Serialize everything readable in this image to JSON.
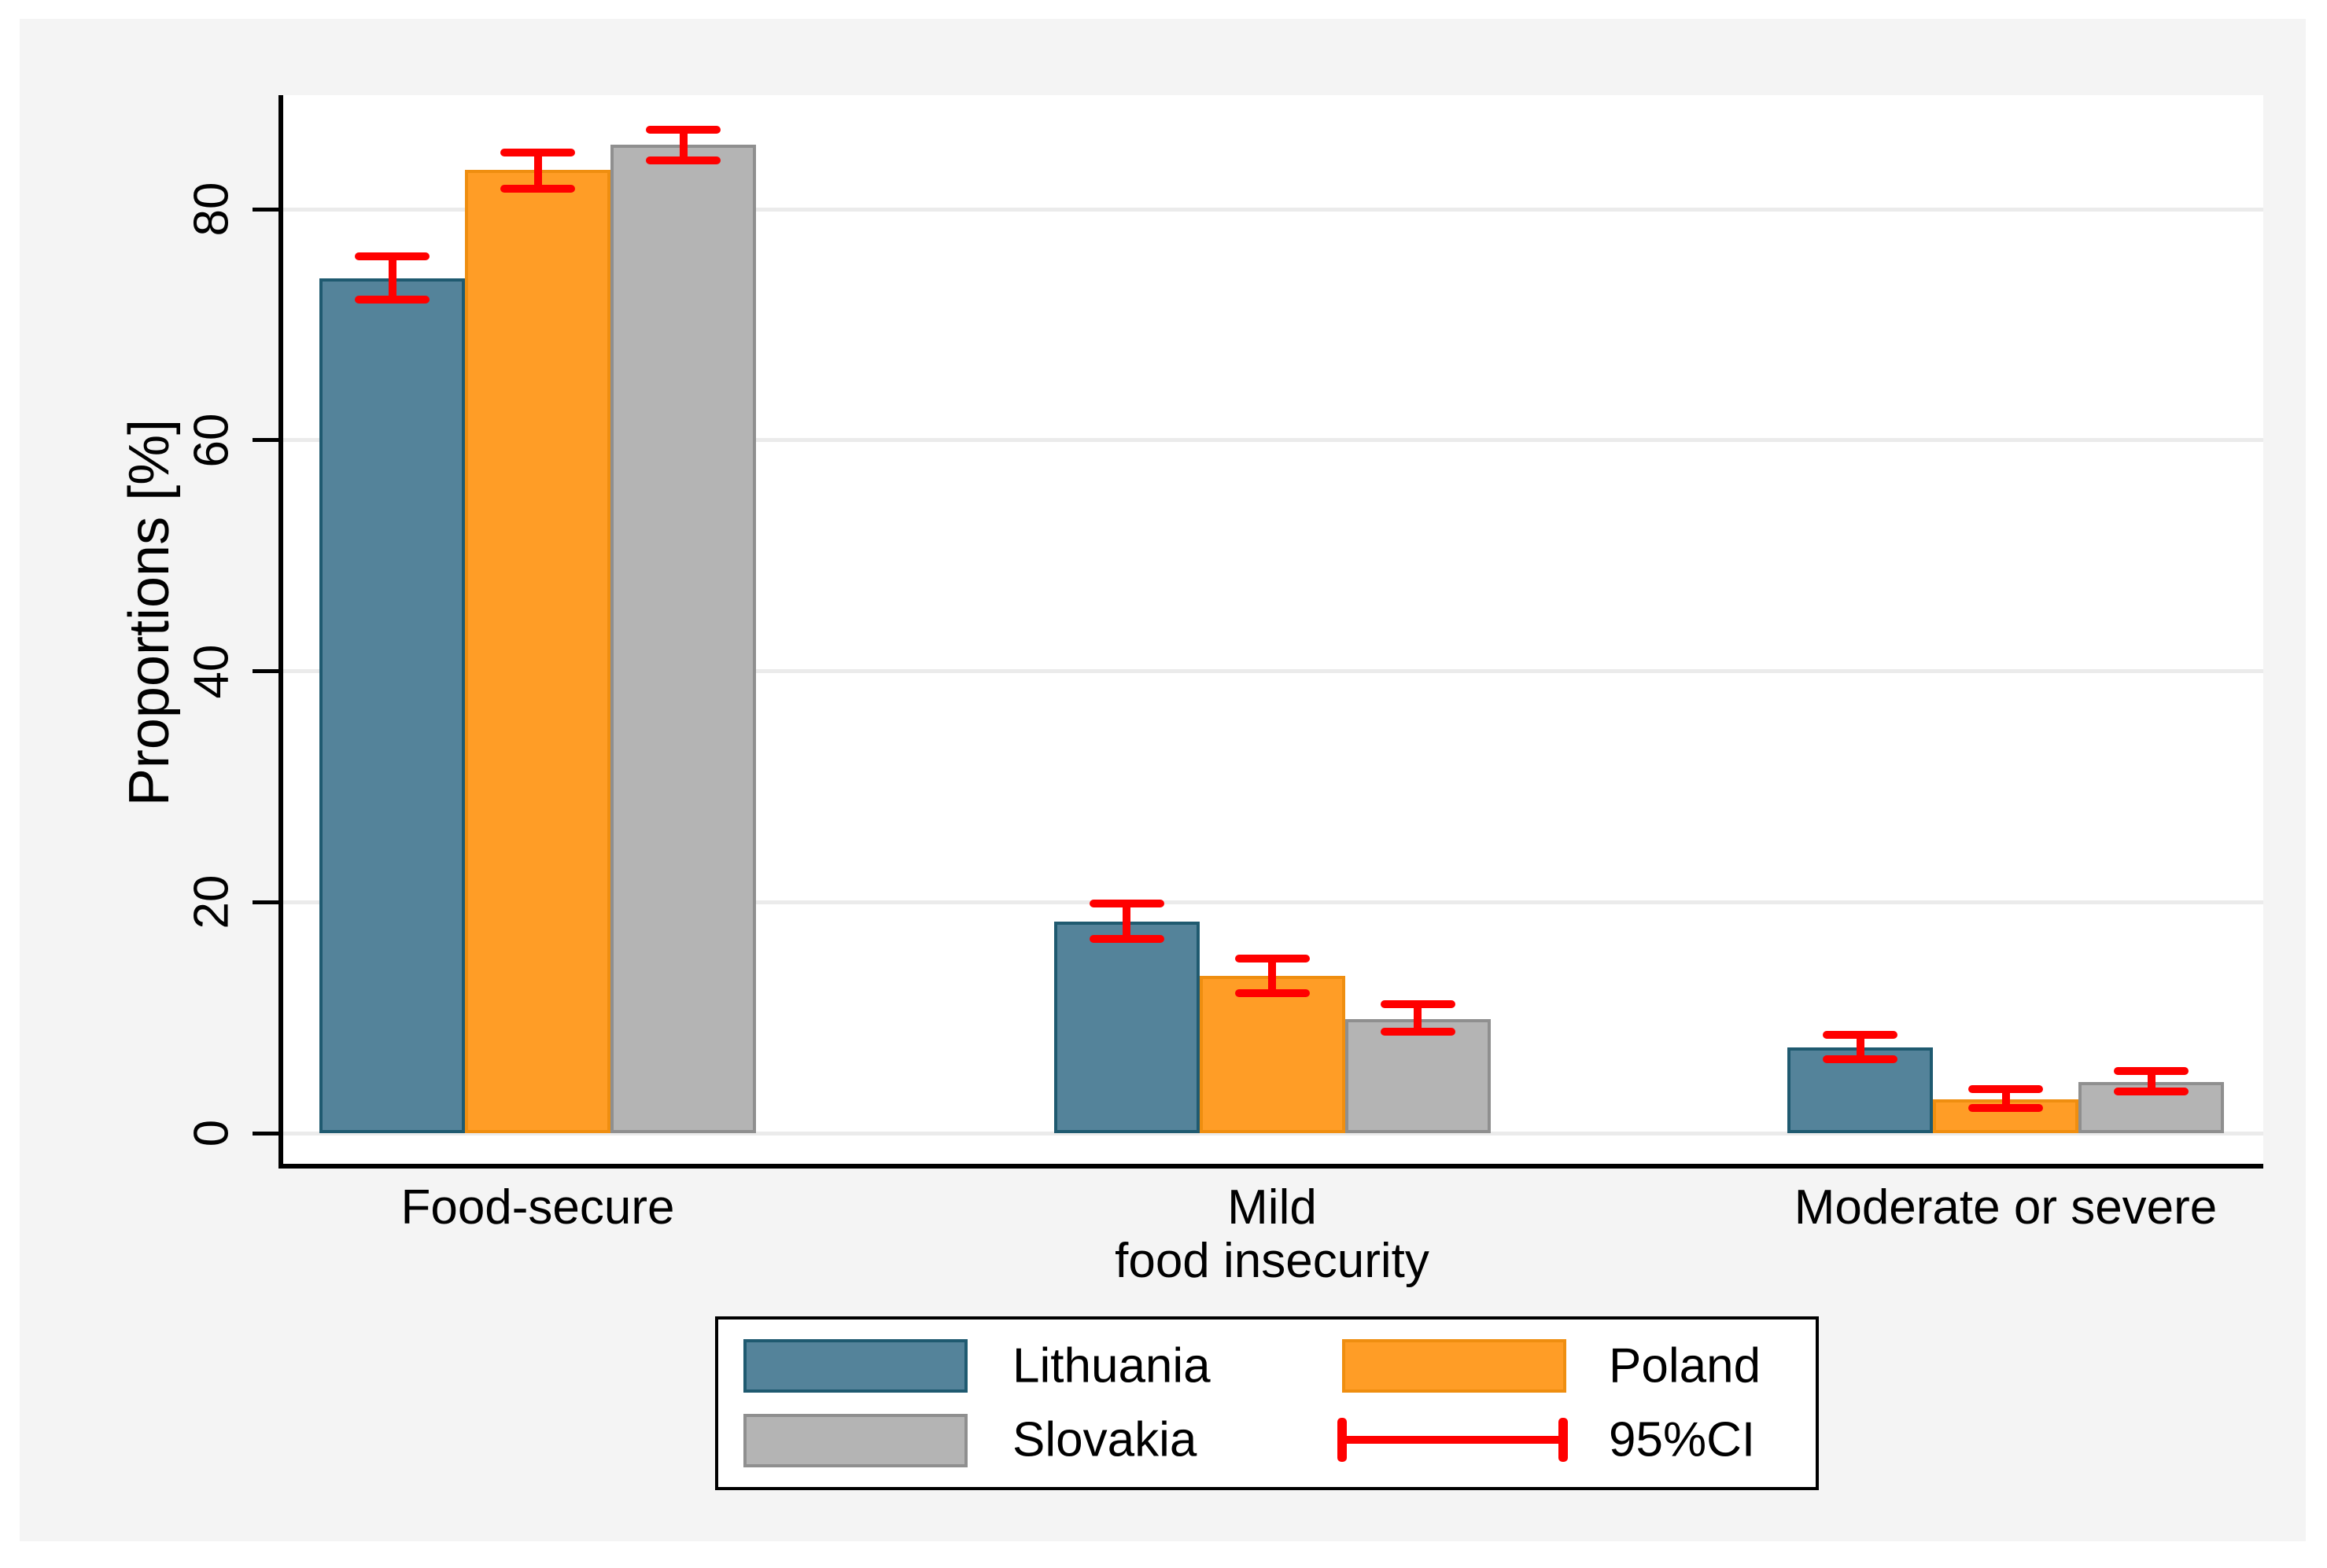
{
  "chart_data": {
    "type": "bar",
    "title": "",
    "ylabel": "Proportions [%]",
    "categories": [
      {
        "lines": [
          "Food-secure"
        ]
      },
      {
        "lines": [
          "Mild",
          "food insecurity"
        ]
      },
      {
        "lines": [
          "Moderate or severe"
        ]
      }
    ],
    "series": [
      {
        "name": "Lithuania",
        "fill": "#54839a",
        "stroke": "#1f5a70",
        "values": [
          74.0,
          18.3,
          7.4
        ],
        "ci_low": [
          72.2,
          16.8,
          6.4
        ],
        "ci_high": [
          75.9,
          19.9,
          8.5
        ]
      },
      {
        "name": "Poland",
        "fill": "#ff9d26",
        "stroke": "#ef8e10",
        "values": [
          83.4,
          13.6,
          2.9
        ],
        "ci_low": [
          81.8,
          12.1,
          2.2
        ],
        "ci_high": [
          84.9,
          15.1,
          3.8
        ]
      },
      {
        "name": "Slovakia",
        "fill": "#b4b4b4",
        "stroke": "#8f8f8f",
        "values": [
          85.6,
          9.9,
          4.4
        ],
        "ci_low": [
          84.2,
          8.8,
          3.6
        ],
        "ci_high": [
          86.9,
          11.2,
          5.4
        ]
      }
    ],
    "error_bars": {
      "label": "95%CI",
      "color": "#ff0000"
    },
    "yticks": [
      0,
      20,
      40,
      60,
      80
    ],
    "ylim": [
      0,
      90
    ],
    "grid": true,
    "legend_position": "bottom"
  },
  "colors": {
    "canvas_bg": "#f4f4f4",
    "plot_bg": "#ffffff",
    "grid": "#ebebeb",
    "axis": "#000000"
  }
}
